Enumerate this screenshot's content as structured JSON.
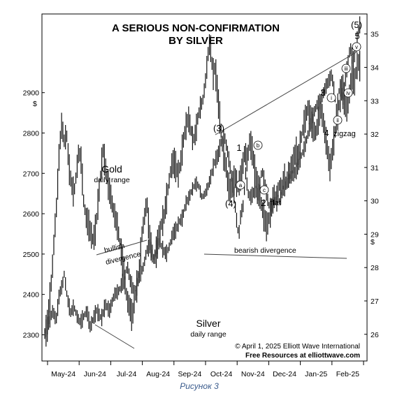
{
  "chart_data": {
    "type": "bar",
    "title_lines": [
      "A SERIOUS NON-CONFIRMATION",
      "BY SILVER"
    ],
    "x_tick_labels": [
      "May-24",
      "Jun-24",
      "Jul-24",
      "Aug-24",
      "Sep-24",
      "Oct-24",
      "Nov-24",
      "Dec-24",
      "Jan-25",
      "Feb-25"
    ],
    "left_axis": {
      "unit": "$",
      "ticks": [
        2300,
        2400,
        2500,
        2600,
        2700,
        2800,
        2900
      ],
      "range": [
        2235,
        3095
      ]
    },
    "right_axis": {
      "unit": "$",
      "ticks": [
        26,
        27,
        28,
        29,
        30,
        31,
        32,
        33,
        34,
        35
      ],
      "range": [
        25.2,
        35.6
      ]
    },
    "gold": {
      "name": "Gold",
      "subtitle": "daily range",
      "series": [
        [
          0,
          2310
        ],
        [
          5,
          2330
        ],
        [
          10,
          2360
        ],
        [
          14,
          2335
        ],
        [
          18,
          2400
        ],
        [
          22,
          2425
        ],
        [
          24,
          2450
        ],
        [
          28,
          2390
        ],
        [
          32,
          2355
        ],
        [
          36,
          2370
        ],
        [
          40,
          2345
        ],
        [
          44,
          2330
        ],
        [
          48,
          2345
        ],
        [
          52,
          2360
        ],
        [
          56,
          2320
        ],
        [
          60,
          2340
        ],
        [
          64,
          2360
        ],
        [
          70,
          2340
        ],
        [
          75,
          2375
        ],
        [
          80,
          2360
        ],
        [
          86,
          2400
        ],
        [
          92,
          2410
        ],
        [
          98,
          2440
        ],
        [
          102,
          2470
        ],
        [
          106,
          2430
        ],
        [
          110,
          2410
        ],
        [
          114,
          2420
        ],
        [
          118,
          2450
        ],
        [
          122,
          2470
        ],
        [
          126,
          2510
        ],
        [
          130,
          2520
        ],
        [
          134,
          2490
        ],
        [
          138,
          2515
        ],
        [
          142,
          2530
        ],
        [
          146,
          2510
        ],
        [
          150,
          2500
        ],
        [
          154,
          2520
        ],
        [
          158,
          2550
        ],
        [
          162,
          2560
        ],
        [
          166,
          2580
        ],
        [
          170,
          2590
        ],
        [
          174,
          2625
        ],
        [
          178,
          2640
        ],
        [
          182,
          2660
        ],
        [
          186,
          2675
        ],
        [
          190,
          2670
        ],
        [
          194,
          2640
        ],
        [
          198,
          2650
        ],
        [
          202,
          2670
        ],
        [
          206,
          2700
        ],
        [
          210,
          2730
        ],
        [
          214,
          2745
        ],
        [
          218,
          2780
        ],
        [
          222,
          2790
        ],
        [
          226,
          2750
        ],
        [
          230,
          2700
        ],
        [
          234,
          2640
        ],
        [
          238,
          2560
        ],
        [
          240,
          2555
        ],
        [
          242,
          2600
        ],
        [
          245,
          2620
        ],
        [
          248,
          2700
        ],
        [
          251,
          2650
        ],
        [
          254,
          2640
        ],
        [
          257,
          2650
        ],
        [
          260,
          2660
        ],
        [
          263,
          2640
        ],
        [
          266,
          2680
        ],
        [
          268,
          2710
        ],
        [
          270,
          2690
        ],
        [
          273,
          2660
        ],
        [
          276,
          2625
        ],
        [
          278,
          2615
        ],
        [
          281,
          2620
        ],
        [
          284,
          2630
        ],
        [
          287,
          2640
        ],
        [
          290,
          2630
        ],
        [
          293,
          2650
        ],
        [
          296,
          2665
        ],
        [
          300,
          2680
        ],
        [
          304,
          2690
        ],
        [
          308,
          2700
        ],
        [
          312,
          2710
        ],
        [
          316,
          2740
        ],
        [
          320,
          2760
        ],
        [
          324,
          2790
        ],
        [
          328,
          2820
        ],
        [
          332,
          2850
        ],
        [
          336,
          2870
        ],
        [
          340,
          2880
        ],
        [
          344,
          2900
        ],
        [
          348,
          2920
        ],
        [
          352,
          2935
        ],
        [
          354,
          2945
        ],
        [
          356,
          2920
        ],
        [
          358,
          2890
        ],
        [
          360,
          2860
        ],
        [
          362,
          2880
        ],
        [
          364,
          2920
        ],
        [
          366,
          2900
        ],
        [
          368,
          2880
        ],
        [
          370,
          2910
        ],
        [
          372,
          2950
        ],
        [
          374,
          2970
        ],
        [
          376,
          3000
        ],
        [
          378,
          3010
        ],
        [
          380,
          2980
        ],
        [
          382,
          2990
        ],
        [
          384,
          3010
        ],
        [
          386,
          3040
        ],
        [
          388,
          3060
        ],
        [
          390,
          3080
        ]
      ]
    },
    "silver": {
      "name": "Silver",
      "subtitle": "daily range",
      "series": [
        [
          0,
          26.0
        ],
        [
          3,
          26.2
        ],
        [
          6,
          27.0
        ],
        [
          9,
          27.8
        ],
        [
          12,
          29.0
        ],
        [
          15,
          30.0
        ],
        [
          18,
          31.5
        ],
        [
          21,
          32.3
        ],
        [
          24,
          31.8
        ],
        [
          27,
          32.0
        ],
        [
          30,
          31.0
        ],
        [
          33,
          30.5
        ],
        [
          36,
          30.2
        ],
        [
          39,
          30.8
        ],
        [
          42,
          31.5
        ],
        [
          45,
          31.2
        ],
        [
          48,
          30.0
        ],
        [
          51,
          29.5
        ],
        [
          54,
          29.3
        ],
        [
          57,
          29.0
        ],
        [
          60,
          28.8
        ],
        [
          63,
          29.2
        ],
        [
          66,
          30.0
        ],
        [
          69,
          30.8
        ],
        [
          72,
          31.5
        ],
        [
          75,
          31.0
        ],
        [
          78,
          30.5
        ],
        [
          81,
          30.2
        ],
        [
          84,
          29.8
        ],
        [
          87,
          29.5
        ],
        [
          90,
          29.2
        ],
        [
          93,
          28.7
        ],
        [
          96,
          28.2
        ],
        [
          99,
          27.5
        ],
        [
          102,
          27.0
        ],
        [
          105,
          26.8
        ],
        [
          108,
          26.5
        ],
        [
          111,
          27.0
        ],
        [
          114,
          27.5
        ],
        [
          117,
          28.0
        ],
        [
          120,
          29.0
        ],
        [
          123,
          29.5
        ],
        [
          126,
          30.0
        ],
        [
          129,
          29.0
        ],
        [
          132,
          28.5
        ],
        [
          135,
          28.2
        ],
        [
          138,
          28.5
        ],
        [
          141,
          29.0
        ],
        [
          144,
          29.3
        ],
        [
          147,
          29.5
        ],
        [
          150,
          30.0
        ],
        [
          153,
          30.5
        ],
        [
          156,
          31.0
        ],
        [
          159,
          31.2
        ],
        [
          162,
          31.0
        ],
        [
          165,
          30.8
        ],
        [
          168,
          31.2
        ],
        [
          171,
          31.8
        ],
        [
          174,
          32.2
        ],
        [
          177,
          32.5
        ],
        [
          180,
          32.2
        ],
        [
          183,
          31.8
        ],
        [
          186,
          32.0
        ],
        [
          189,
          32.5
        ],
        [
          192,
          32.8
        ],
        [
          195,
          33.0
        ],
        [
          198,
          33.5
        ],
        [
          200,
          34.0
        ],
        [
          202,
          34.5
        ],
        [
          204,
          34.8
        ],
        [
          206,
          34.2
        ],
        [
          208,
          33.8
        ],
        [
          210,
          34.0
        ],
        [
          212,
          33.6
        ],
        [
          214,
          33.0
        ],
        [
          216,
          32.5
        ],
        [
          218,
          32.0
        ],
        [
          220,
          31.5
        ],
        [
          222,
          31.2
        ],
        [
          224,
          31.0
        ],
        [
          226,
          30.5
        ],
        [
          229,
          30.3
        ],
        [
          232,
          30.5
        ],
        [
          235,
          30.7
        ],
        [
          238,
          30.4
        ],
        [
          241,
          30.6
        ],
        [
          244,
          31.0
        ],
        [
          247,
          31.5
        ],
        [
          250,
          31.2
        ],
        [
          253,
          31.8
        ],
        [
          256,
          31.5
        ],
        [
          259,
          31.0
        ],
        [
          262,
          30.5
        ],
        [
          265,
          30.2
        ],
        [
          268,
          29.8
        ],
        [
          271,
          29.5
        ],
        [
          274,
          29.2
        ],
        [
          277,
          29.5
        ],
        [
          280,
          29.8
        ],
        [
          283,
          30.2
        ],
        [
          286,
          30.0
        ],
        [
          289,
          30.5
        ],
        [
          292,
          30.3
        ],
        [
          295,
          30.7
        ],
        [
          298,
          30.5
        ],
        [
          301,
          30.8
        ],
        [
          304,
          31.0
        ],
        [
          307,
          31.2
        ],
        [
          310,
          31.5
        ],
        [
          313,
          31.3
        ],
        [
          316,
          31.8
        ],
        [
          319,
          32.2
        ],
        [
          322,
          32.5
        ],
        [
          325,
          32.8
        ],
        [
          328,
          32.5
        ],
        [
          331,
          32.2
        ],
        [
          334,
          32.0
        ],
        [
          337,
          32.3
        ],
        [
          340,
          32.8
        ],
        [
          343,
          32.5
        ],
        [
          346,
          32.0
        ],
        [
          349,
          31.5
        ],
        [
          352,
          31.0
        ],
        [
          355,
          31.5
        ],
        [
          358,
          32.0
        ],
        [
          361,
          32.5
        ],
        [
          364,
          33.0
        ],
        [
          367,
          33.5
        ],
        [
          370,
          33.0
        ],
        [
          373,
          32.8
        ],
        [
          376,
          33.2
        ],
        [
          379,
          33.8
        ],
        [
          382,
          33.5
        ],
        [
          385,
          34.0
        ],
        [
          388,
          34.2
        ],
        [
          390,
          33.8
        ]
      ]
    },
    "annotations": {
      "wave_labels": [
        "(3)",
        "(4)",
        "1",
        "2",
        "flat",
        "3",
        "4",
        "zigzag",
        "(5)",
        "5"
      ],
      "circle_labels": [
        "a",
        "b",
        "c",
        "i",
        "ii",
        "iii",
        "iv",
        "v"
      ],
      "bullish": [
        "bullish",
        "divergence"
      ],
      "bearish": "bearish divergence"
    },
    "credit_lines": [
      "© April 1, 2025  Elliott Wave International",
      "Free Resources at elliottwave.com"
    ],
    "caption": "Рисунок 3"
  }
}
